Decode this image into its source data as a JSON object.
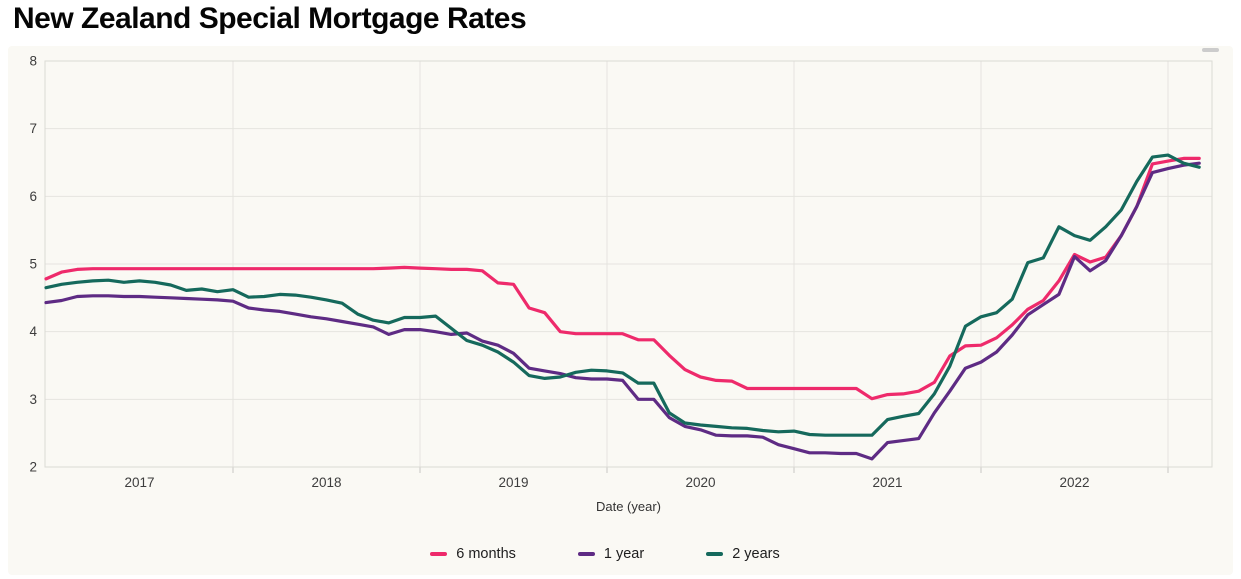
{
  "title": "New Zealand Special Mortgage Rates",
  "chart_data": {
    "type": "line",
    "title": "New Zealand Special Mortgage Rates",
    "xlabel": "Date (year)",
    "ylabel": "",
    "ylim": [
      2,
      8
    ],
    "y_ticks": [
      2,
      3,
      4,
      5,
      6,
      7,
      8
    ],
    "x_year_labels": [
      "2017",
      "2018",
      "2019",
      "2020",
      "2021",
      "2022"
    ],
    "grid": true,
    "legend_position": "bottom",
    "x": [
      "2017-01",
      "2017-02",
      "2017-03",
      "2017-04",
      "2017-05",
      "2017-06",
      "2017-07",
      "2017-08",
      "2017-09",
      "2017-10",
      "2017-11",
      "2017-12",
      "2018-01",
      "2018-02",
      "2018-03",
      "2018-04",
      "2018-05",
      "2018-06",
      "2018-07",
      "2018-08",
      "2018-09",
      "2018-10",
      "2018-11",
      "2018-12",
      "2019-01",
      "2019-02",
      "2019-03",
      "2019-04",
      "2019-05",
      "2019-06",
      "2019-07",
      "2019-08",
      "2019-09",
      "2019-10",
      "2019-11",
      "2019-12",
      "2020-01",
      "2020-02",
      "2020-03",
      "2020-04",
      "2020-05",
      "2020-06",
      "2020-07",
      "2020-08",
      "2020-09",
      "2020-10",
      "2020-11",
      "2020-12",
      "2021-01",
      "2021-02",
      "2021-03",
      "2021-04",
      "2021-05",
      "2021-06",
      "2021-07",
      "2021-08",
      "2021-09",
      "2021-10",
      "2021-11",
      "2021-12",
      "2022-01",
      "2022-02",
      "2022-03",
      "2022-04",
      "2022-05",
      "2022-06",
      "2022-07",
      "2022-08",
      "2022-09",
      "2022-10",
      "2022-11",
      "2022-12",
      "2023-01",
      "2023-02",
      "2023-03"
    ],
    "series": [
      {
        "name": "6 months",
        "color": "#EE2A6B",
        "values": [
          4.78,
          4.88,
          4.92,
          4.93,
          4.93,
          4.93,
          4.93,
          4.93,
          4.93,
          4.93,
          4.93,
          4.93,
          4.93,
          4.93,
          4.93,
          4.93,
          4.93,
          4.93,
          4.93,
          4.93,
          4.93,
          4.93,
          4.94,
          4.95,
          4.94,
          4.93,
          4.92,
          4.92,
          4.9,
          4.72,
          4.7,
          4.35,
          4.28,
          4.0,
          3.97,
          3.97,
          3.97,
          3.97,
          3.88,
          3.88,
          3.65,
          3.44,
          3.33,
          3.28,
          3.27,
          3.16,
          3.16,
          3.16,
          3.16,
          3.16,
          3.16,
          3.16,
          3.16,
          3.01,
          3.07,
          3.08,
          3.12,
          3.25,
          3.64,
          3.79,
          3.8,
          3.91,
          4.1,
          4.33,
          4.46,
          4.75,
          5.14,
          5.03,
          5.1,
          5.42,
          5.85,
          6.48,
          6.52,
          6.56,
          6.56
        ]
      },
      {
        "name": "1 year",
        "color": "#5E2B84",
        "values": [
          4.43,
          4.46,
          4.52,
          4.53,
          4.53,
          4.52,
          4.52,
          4.51,
          4.5,
          4.49,
          4.48,
          4.47,
          4.45,
          4.35,
          4.32,
          4.3,
          4.26,
          4.22,
          4.19,
          4.15,
          4.11,
          4.07,
          3.96,
          4.03,
          4.03,
          4.0,
          3.96,
          3.98,
          3.86,
          3.8,
          3.68,
          3.46,
          3.42,
          3.38,
          3.32,
          3.3,
          3.3,
          3.28,
          3.0,
          3.0,
          2.73,
          2.6,
          2.55,
          2.47,
          2.46,
          2.46,
          2.44,
          2.33,
          2.27,
          2.21,
          2.21,
          2.2,
          2.2,
          2.12,
          2.36,
          2.39,
          2.42,
          2.8,
          3.12,
          3.46,
          3.55,
          3.7,
          3.95,
          4.25,
          4.4,
          4.55,
          5.11,
          4.9,
          5.05,
          5.42,
          5.85,
          6.35,
          6.41,
          6.46,
          6.49
        ]
      },
      {
        "name": "2 years",
        "color": "#15695C",
        "values": [
          4.65,
          4.7,
          4.73,
          4.75,
          4.76,
          4.73,
          4.75,
          4.73,
          4.69,
          4.61,
          4.63,
          4.59,
          4.62,
          4.51,
          4.52,
          4.55,
          4.54,
          4.51,
          4.47,
          4.42,
          4.26,
          4.17,
          4.13,
          4.21,
          4.21,
          4.23,
          4.05,
          3.87,
          3.8,
          3.7,
          3.55,
          3.35,
          3.31,
          3.33,
          3.4,
          3.43,
          3.42,
          3.39,
          3.24,
          3.24,
          2.8,
          2.65,
          2.62,
          2.6,
          2.58,
          2.57,
          2.54,
          2.52,
          2.53,
          2.48,
          2.47,
          2.47,
          2.47,
          2.47,
          2.7,
          2.75,
          2.79,
          3.08,
          3.49,
          4.08,
          4.22,
          4.28,
          4.48,
          5.02,
          5.09,
          5.55,
          5.42,
          5.35,
          5.55,
          5.8,
          6.22,
          6.58,
          6.61,
          6.49,
          6.43
        ]
      }
    ]
  }
}
